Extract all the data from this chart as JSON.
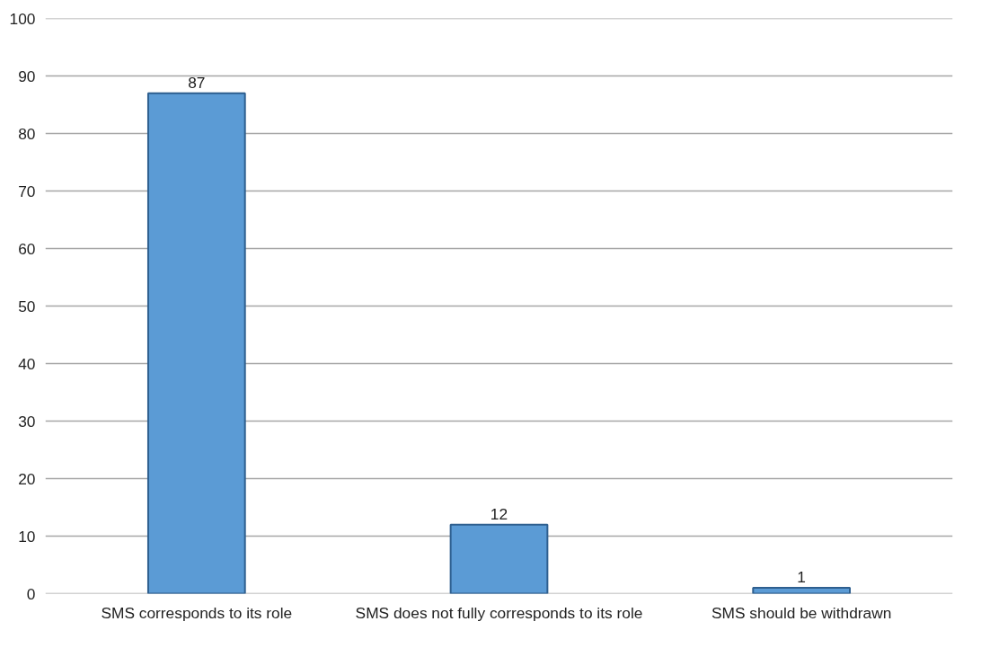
{
  "chart_data": {
    "type": "bar",
    "categories": [
      "SMS corresponds to its role",
      "SMS does not fully corresponds to its role",
      "SMS should be withdrawn"
    ],
    "values": [
      87,
      12,
      1
    ],
    "color": "#5b9bd5",
    "ylim": [
      0,
      100
    ],
    "yticks": [
      0,
      10,
      20,
      30,
      40,
      50,
      60,
      70,
      80,
      90,
      100
    ],
    "grid": "y",
    "data_labels": true
  }
}
